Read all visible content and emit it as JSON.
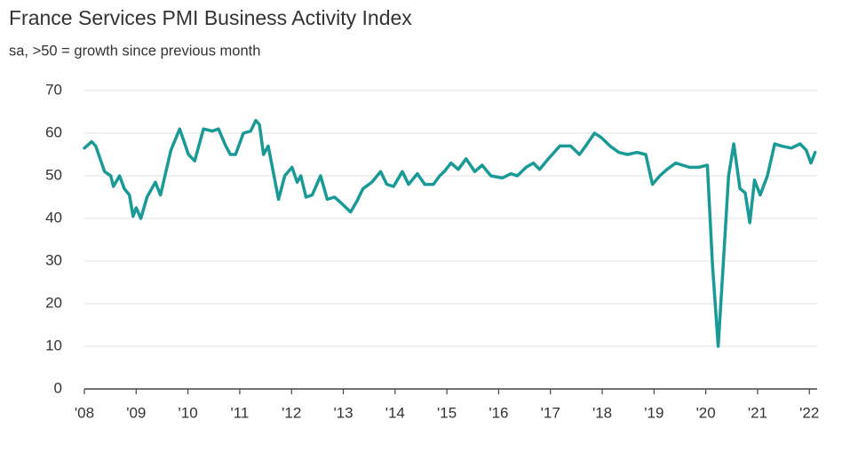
{
  "chart_data": {
    "type": "line",
    "title": "France Services PMI Business Activity Index",
    "subtitle": "sa, >50 = growth since previous month",
    "color": "#1a9a96",
    "grid": true,
    "x": [
      2008.0,
      2008.14,
      2008.22,
      2008.39,
      2008.51,
      2008.56,
      2008.68,
      2008.77,
      2008.87,
      2008.94,
      2009.0,
      2009.09,
      2009.21,
      2009.37,
      2009.47,
      2009.67,
      2009.84,
      2010.01,
      2010.13,
      2010.3,
      2010.47,
      2010.59,
      2010.73,
      2010.82,
      2010.92,
      2011.07,
      2011.21,
      2011.31,
      2011.38,
      2011.46,
      2011.55,
      2011.75,
      2011.87,
      2012.01,
      2012.11,
      2012.18,
      2012.28,
      2012.4,
      2012.56,
      2012.69,
      2012.83,
      2012.97,
      2013.14,
      2013.26,
      2013.38,
      2013.55,
      2013.72,
      2013.84,
      2013.97,
      2014.14,
      2014.26,
      2014.43,
      2014.57,
      2014.74,
      2014.86,
      2014.95,
      2015.08,
      2015.22,
      2015.37,
      2015.54,
      2015.68,
      2015.85,
      2016.07,
      2016.24,
      2016.36,
      2016.53,
      2016.67,
      2016.79,
      2016.96,
      2017.18,
      2017.39,
      2017.56,
      2017.68,
      2017.85,
      2017.98,
      2018.15,
      2018.32,
      2018.49,
      2018.67,
      2018.84,
      2018.97,
      2019.11,
      2019.25,
      2019.42,
      2019.55,
      2019.69,
      2019.86,
      2020.03,
      2020.13,
      2020.24,
      2020.34,
      2020.44,
      2020.54,
      2020.66,
      2020.76,
      2020.85,
      2020.94,
      2021.05,
      2021.19,
      2021.33,
      2021.46,
      2021.65,
      2021.82,
      2021.94,
      2022.03,
      2022.11
    ],
    "values": [
      56.5,
      58,
      57,
      51,
      50,
      47.5,
      50,
      47,
      45.5,
      40.5,
      42.5,
      40,
      45,
      48.5,
      45.5,
      56,
      61,
      55,
      53.5,
      61,
      60.5,
      61,
      57,
      55,
      55,
      60,
      60.5,
      63,
      62,
      55,
      57,
      44.5,
      50,
      52,
      48.5,
      50,
      45,
      45.5,
      50,
      44.5,
      45,
      43.5,
      41.5,
      44,
      47,
      48.5,
      51,
      48,
      47.5,
      51,
      48,
      50.5,
      48,
      48,
      50,
      51,
      53,
      51.5,
      54,
      51,
      52.5,
      50,
      49.5,
      50.5,
      50,
      52,
      53,
      51.5,
      54,
      57,
      57,
      55,
      57,
      60,
      59,
      57,
      55.5,
      55,
      55.5,
      55,
      48,
      50,
      51.5,
      53,
      52.5,
      52,
      52,
      52.5,
      29,
      10,
      30,
      50,
      57.5,
      47,
      46,
      39,
      49,
      45.5,
      50,
      57.5,
      57,
      56.5,
      57.5,
      56,
      53,
      55.5
    ],
    "xlim": [
      2008,
      2022.15
    ],
    "xticks": [
      {
        "value": 2008,
        "label": "'08"
      },
      {
        "value": 2009,
        "label": "'09"
      },
      {
        "value": 2010,
        "label": "'10"
      },
      {
        "value": 2011,
        "label": "'11"
      },
      {
        "value": 2012,
        "label": "'12"
      },
      {
        "value": 2013,
        "label": "'13"
      },
      {
        "value": 2014,
        "label": "'14"
      },
      {
        "value": 2015,
        "label": "'15"
      },
      {
        "value": 2016,
        "label": "'16"
      },
      {
        "value": 2017,
        "label": "'17"
      },
      {
        "value": 2018,
        "label": "'18"
      },
      {
        "value": 2019,
        "label": "'19"
      },
      {
        "value": 2020,
        "label": "'20"
      },
      {
        "value": 2021,
        "label": "'21"
      },
      {
        "value": 2022,
        "label": "'22"
      }
    ],
    "ylim": [
      0,
      70
    ],
    "yticks": [
      0,
      10,
      20,
      30,
      40,
      50,
      60,
      70
    ]
  }
}
